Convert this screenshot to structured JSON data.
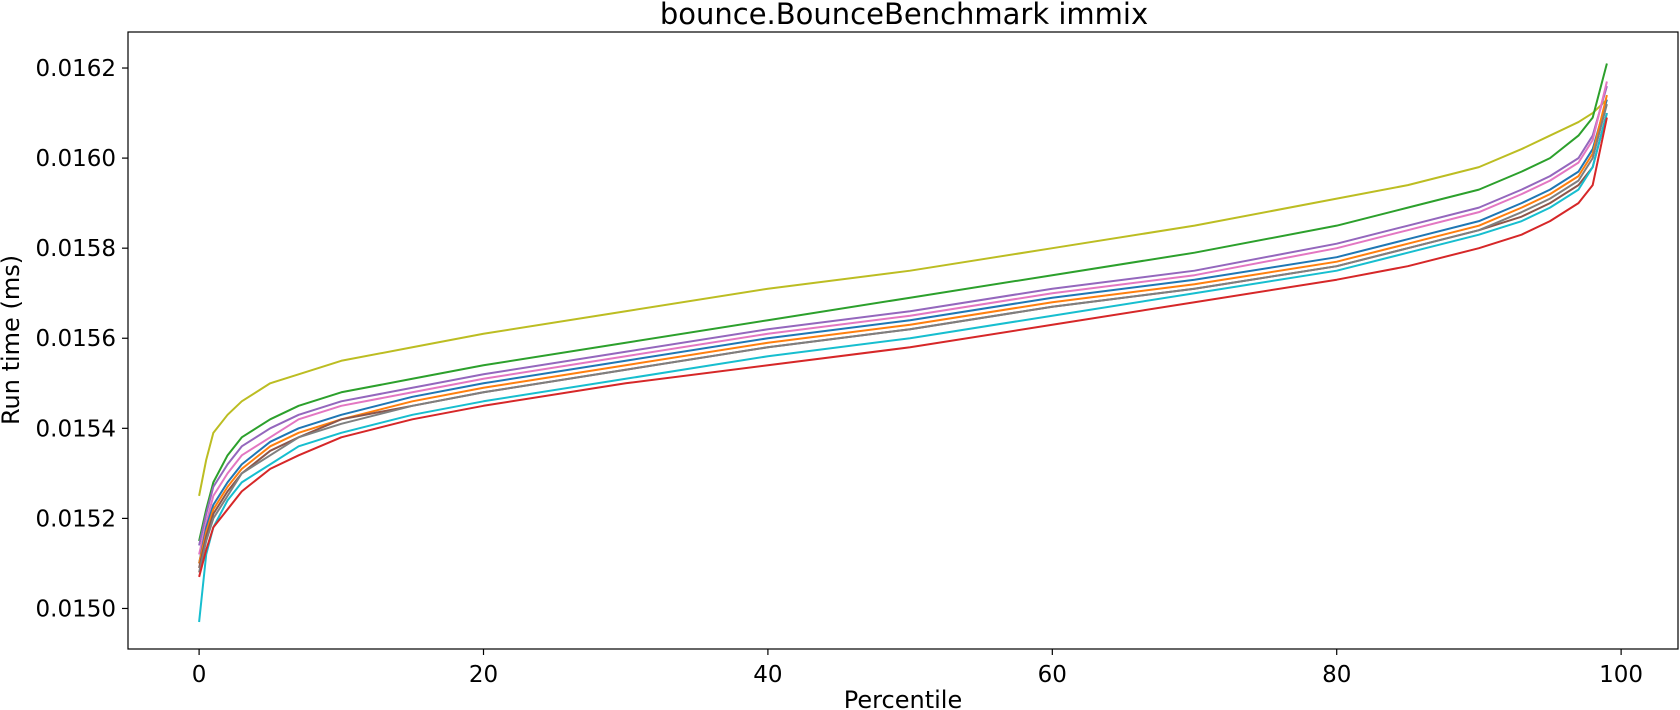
{
  "chart_data": {
    "type": "line",
    "title": "bounce.BounceBenchmark immix",
    "xlabel": "Percentile",
    "ylabel": "Run time (ms)",
    "xlim": [
      -5,
      104
    ],
    "ylim": [
      0.01491,
      0.01628
    ],
    "x_ticks": [
      0,
      20,
      40,
      60,
      80,
      100
    ],
    "x_tick_labels": [
      "0",
      "20",
      "40",
      "60",
      "80",
      "100"
    ],
    "y_ticks": [
      0.015,
      0.0152,
      0.0154,
      0.0156,
      0.0158,
      0.016,
      0.0162
    ],
    "y_tick_labels": [
      "0.0150",
      "0.0152",
      "0.0154",
      "0.0156",
      "0.0158",
      "0.0160",
      "0.0162"
    ],
    "grid": false,
    "legend": "none",
    "x": [
      0,
      0.5,
      1,
      2,
      3,
      5,
      7,
      10,
      15,
      20,
      30,
      40,
      50,
      60,
      70,
      80,
      85,
      90,
      93,
      95,
      97,
      98,
      99
    ],
    "series": [
      {
        "color": "#bcbd22",
        "values": [
          0.01525,
          0.01533,
          0.01539,
          0.01543,
          0.01546,
          0.0155,
          0.01552,
          0.01555,
          0.01558,
          0.01561,
          0.01566,
          0.01571,
          0.01575,
          0.0158,
          0.01585,
          0.01591,
          0.01594,
          0.01598,
          0.01602,
          0.01605,
          0.01608,
          0.0161,
          0.01613
        ]
      },
      {
        "color": "#2ca02c",
        "values": [
          0.01515,
          0.01522,
          0.01528,
          0.01534,
          0.01538,
          0.01542,
          0.01545,
          0.01548,
          0.01551,
          0.01554,
          0.01559,
          0.01564,
          0.01569,
          0.01574,
          0.01579,
          0.01585,
          0.01589,
          0.01593,
          0.01597,
          0.016,
          0.01605,
          0.01609,
          0.01621
        ]
      },
      {
        "color": "#9467bd",
        "values": [
          0.01514,
          0.01521,
          0.01527,
          0.01532,
          0.01536,
          0.0154,
          0.01543,
          0.01546,
          0.01549,
          0.01552,
          0.01557,
          0.01562,
          0.01566,
          0.01571,
          0.01575,
          0.01581,
          0.01585,
          0.01589,
          0.01593,
          0.01596,
          0.016,
          0.01605,
          0.01616
        ]
      },
      {
        "color": "#e377c2",
        "values": [
          0.01512,
          0.01519,
          0.01525,
          0.0153,
          0.01534,
          0.01538,
          0.01542,
          0.01545,
          0.01548,
          0.01551,
          0.01556,
          0.01561,
          0.01565,
          0.0157,
          0.01574,
          0.0158,
          0.01584,
          0.01588,
          0.01592,
          0.01595,
          0.01599,
          0.01604,
          0.01617
        ]
      },
      {
        "color": "#1f77b4",
        "values": [
          0.0151,
          0.01518,
          0.01523,
          0.01528,
          0.01532,
          0.01537,
          0.0154,
          0.01543,
          0.01547,
          0.0155,
          0.01555,
          0.0156,
          0.01564,
          0.01569,
          0.01573,
          0.01578,
          0.01582,
          0.01586,
          0.0159,
          0.01593,
          0.01597,
          0.01602,
          0.01613
        ]
      },
      {
        "color": "#ff7f0e",
        "values": [
          0.0151,
          0.01517,
          0.01522,
          0.01527,
          0.01531,
          0.01536,
          0.01539,
          0.01542,
          0.01546,
          0.01549,
          0.01554,
          0.01559,
          0.01563,
          0.01568,
          0.01572,
          0.01577,
          0.01581,
          0.01585,
          0.01589,
          0.01592,
          0.01596,
          0.01601,
          0.01614
        ]
      },
      {
        "color": "#8c564b",
        "values": [
          0.01509,
          0.01516,
          0.01521,
          0.01526,
          0.0153,
          0.01535,
          0.01538,
          0.01542,
          0.01545,
          0.01548,
          0.01553,
          0.01558,
          0.01562,
          0.01567,
          0.01571,
          0.01576,
          0.0158,
          0.01584,
          0.01587,
          0.0159,
          0.01594,
          0.01598,
          0.0161
        ]
      },
      {
        "color": "#7f7f7f",
        "values": [
          0.01508,
          0.01515,
          0.0152,
          0.01525,
          0.0153,
          0.01534,
          0.01538,
          0.01541,
          0.01545,
          0.01548,
          0.01553,
          0.01558,
          0.01562,
          0.01567,
          0.01571,
          0.01576,
          0.0158,
          0.01584,
          0.01588,
          0.01591,
          0.01595,
          0.016,
          0.01612
        ]
      },
      {
        "color": "#17becf",
        "values": [
          0.01497,
          0.01512,
          0.01518,
          0.01524,
          0.01528,
          0.01532,
          0.01536,
          0.01539,
          0.01543,
          0.01546,
          0.01551,
          0.01556,
          0.0156,
          0.01565,
          0.0157,
          0.01575,
          0.01579,
          0.01583,
          0.01586,
          0.01589,
          0.01593,
          0.01598,
          0.0161
        ]
      },
      {
        "color": "#d62728",
        "values": [
          0.01507,
          0.01513,
          0.01518,
          0.01522,
          0.01526,
          0.01531,
          0.01534,
          0.01538,
          0.01542,
          0.01545,
          0.0155,
          0.01554,
          0.01558,
          0.01563,
          0.01568,
          0.01573,
          0.01576,
          0.0158,
          0.01583,
          0.01586,
          0.0159,
          0.01594,
          0.01609
        ]
      }
    ]
  }
}
